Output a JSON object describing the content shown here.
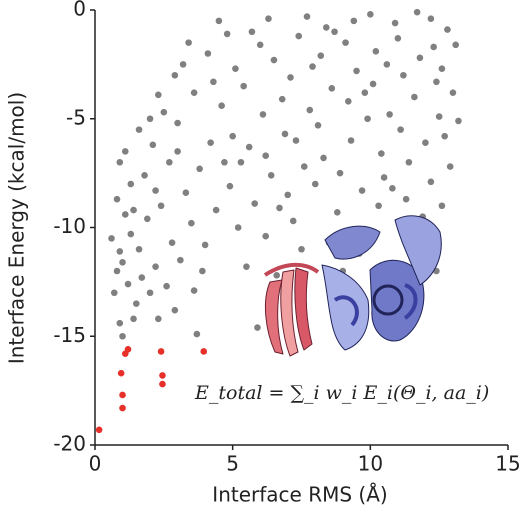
{
  "chart_data": {
    "type": "scatter",
    "xlabel": "Interface RMS (Å)",
    "ylabel": "Interface Energy (kcal/mol)",
    "xlim": [
      0,
      15
    ],
    "xticks": [
      0,
      5,
      10,
      15
    ],
    "ylim": [
      -20,
      0
    ],
    "yticks": [
      0,
      -5,
      -10,
      -15,
      -20
    ],
    "annotation": "E_total = ∑_i w_i E_i(Θ_i, aa_i)",
    "series": [
      {
        "color": "#808080",
        "x": [
          1.0,
          0.9,
          0.7,
          0.8,
          0.9,
          0.6,
          1.1,
          0.8,
          1.3,
          0.9,
          1.1,
          1.4,
          1.5,
          1.7,
          1.6,
          1.9,
          1.3,
          2.0,
          2.3,
          2.6,
          2.2,
          2.8,
          2.4,
          1.8,
          2.1,
          1.6,
          2.5,
          2.9,
          3.2,
          3.6,
          3.0,
          2.7,
          3.3,
          3.8,
          3.5,
          3.1,
          3.9,
          4.0,
          3.7,
          4.4,
          4.2,
          4.6,
          4.1,
          4.8,
          5.1,
          5.4,
          5.0,
          5.3,
          4.9,
          5.6,
          5.8,
          5.2,
          5.5,
          6.2,
          5.9,
          6.6,
          6.0,
          6.3,
          6.5,
          6.8,
          6.1,
          6.9,
          6.4,
          7.0,
          7.2,
          6.7,
          7.5,
          7.1,
          7.4,
          7.7,
          7.3,
          7.8,
          7.6,
          8.0,
          8.2,
          8.4,
          8.1,
          8.6,
          8.3,
          8.8,
          8.5,
          9.0,
          8.9,
          9.2,
          9.1,
          9.4,
          9.5,
          9.3,
          9.7,
          9.6,
          9.9,
          10.0,
          10.2,
          10.1,
          10.4,
          10.3,
          10.5,
          10.7,
          10.6,
          10.9,
          11.0,
          11.2,
          11.1,
          11.4,
          11.3,
          11.5,
          11.7,
          11.8,
          11.6,
          12.0,
          11.9,
          12.1,
          12.2,
          12.3,
          12.4,
          12.5,
          12.2,
          12.6,
          12.8,
          12.7,
          13.0,
          13.2,
          13.1,
          12.9,
          12.4,
          12.6,
          11.0,
          2.0,
          2.3,
          3.4,
          4.5,
          5.7,
          4.3,
          4.7,
          6.2,
          7.9,
          8.7,
          9.8,
          10.8,
          1.2,
          1.4,
          1.0,
          2.2,
          3.0,
          3.6,
          2.9
        ],
        "values": [
          -15.0,
          -14.4,
          -13.0,
          -12.0,
          -11.1,
          -10.5,
          -9.4,
          -8.7,
          -8.0,
          -7.0,
          -6.5,
          -14.2,
          -13.5,
          -12.3,
          -11.0,
          -9.6,
          -10.3,
          -13.0,
          -14.2,
          -12.7,
          -11.8,
          -10.7,
          -9.0,
          -7.6,
          -6.2,
          -5.5,
          -4.7,
          -3.0,
          -2.5,
          -3.8,
          -5.2,
          -7.0,
          -8.4,
          -7.3,
          -9.8,
          -11.5,
          -12.0,
          -10.8,
          -14.9,
          -9.2,
          -6.1,
          -4.4,
          -2.0,
          -1.1,
          -2.7,
          -3.5,
          -5.8,
          -7.0,
          -8.1,
          -6.3,
          -8.9,
          -10.0,
          -11.8,
          -10.4,
          -14.6,
          -12.2,
          -1.6,
          -0.4,
          -2.3,
          -4.1,
          -4.8,
          -5.7,
          -7.6,
          -8.5,
          -9.7,
          -9.1,
          -11.0,
          -3.1,
          -1.2,
          -0.3,
          -6.0,
          -4.6,
          -7.2,
          -8.0,
          -2.1,
          -0.8,
          -5.3,
          -3.6,
          -6.8,
          -9.3,
          -10.7,
          -12.0,
          -7.5,
          -4.2,
          -1.5,
          -0.5,
          -2.8,
          -6.0,
          -8.3,
          -11.2,
          -5.0,
          -0.2,
          -1.9,
          -3.4,
          -6.6,
          -9.0,
          -7.7,
          -4.8,
          -2.5,
          -0.6,
          -1.3,
          -3.0,
          -5.5,
          -7.0,
          -8.7,
          -10.1,
          -0.1,
          -2.2,
          -4.0,
          -6.1,
          -9.5,
          -11.3,
          -0.4,
          -1.7,
          -3.3,
          -4.9,
          -7.9,
          -2.7,
          -0.9,
          -5.8,
          -3.8,
          -5.1,
          -1.6,
          -7.2,
          -12.0,
          -9.0,
          -13.0,
          -5.0,
          -3.9,
          -1.5,
          -0.5,
          -1.0,
          -3.3,
          -7.0,
          -6.7,
          -2.6,
          -1.0,
          -3.8,
          -8.2,
          -12.6,
          -9.2,
          -11.6,
          -8.3,
          -6.5,
          -12.9,
          -13.8
        ]
      },
      {
        "color": "#e8302a",
        "x": [
          0.15,
          1.0,
          1.0,
          0.95,
          1.1,
          1.2,
          2.4,
          2.45,
          2.45,
          3.95
        ],
        "values": [
          -19.3,
          -18.3,
          -17.7,
          -16.7,
          -15.8,
          -15.6,
          -15.7,
          -16.8,
          -17.2,
          -15.7
        ]
      }
    ]
  }
}
